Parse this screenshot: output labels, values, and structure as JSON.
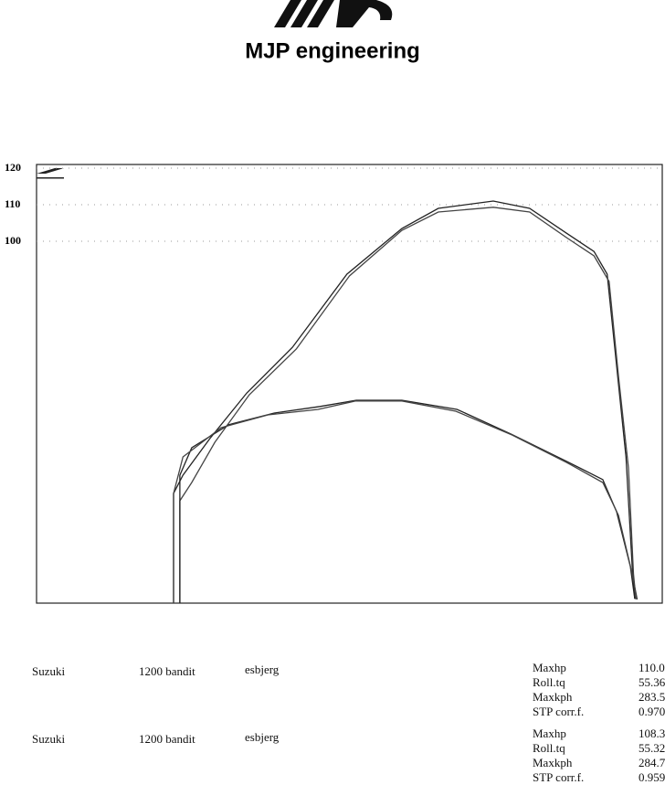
{
  "header": {
    "title": "MJP engineering"
  },
  "chart_data": {
    "type": "line",
    "xlim": [
      0,
      100
    ],
    "ylim": [
      0,
      120
    ],
    "yticks": [
      100,
      110,
      120
    ],
    "grid": true,
    "series": [
      {
        "color": "#222222",
        "x": [
          21.9,
          21.9,
          23.4,
          27.7,
          33.6,
          40.9,
          49.6,
          58.4,
          64.2,
          73.0,
          78.8,
          84.7,
          89.1,
          91.2,
          92.7,
          94.2,
          95.2,
          95.6
        ],
        "values": [
          0,
          30,
          35,
          45,
          57.5,
          70,
          90,
          102.5,
          108,
          110.0,
          108,
          101.2,
          96.2,
          90,
          65,
          40,
          10,
          1.2
        ]
      },
      {
        "color": "#444444",
        "x": [
          22.9,
          22.9,
          24.8,
          28.5,
          34,
          41.5,
          50,
          58.4,
          64.2,
          73,
          78.8,
          84.7,
          89.1,
          91.5,
          93,
          94.6,
          95.4,
          95.8
        ],
        "values": [
          0,
          28,
          33,
          44,
          57,
          69.5,
          89.5,
          102,
          107,
          108.3,
          107,
          100,
          95,
          88,
          62,
          37,
          8,
          1
        ]
      },
      {
        "color": "#222222",
        "x": [
          22.9,
          22.9,
          24.8,
          30.7,
          38.0,
          45.3,
          51.1,
          58.4,
          67.2,
          75.9,
          84.7,
          90.5,
          92.7,
          94.9,
          95.6
        ],
        "values": [
          0,
          35,
          42.5,
          48.8,
          52,
          53.8,
          55.5,
          55.5,
          53,
          46.2,
          38.8,
          33.8,
          25,
          10,
          1.2
        ]
      },
      {
        "color": "#444444",
        "x": [
          21.9,
          21.9,
          23.4,
          29.5,
          37,
          45,
          51,
          58.4,
          67,
          76,
          84.7,
          90.5,
          93,
          95.2,
          96
        ],
        "values": [
          0,
          30,
          40,
          48,
          51.5,
          53,
          55.3,
          55.3,
          52.5,
          46,
          38.5,
          33,
          24,
          8,
          1
        ]
      }
    ]
  },
  "runs": [
    {
      "make": "Suzuki",
      "model": "1200 bandit",
      "place": "esbjerg",
      "stats": [
        [
          "Maxhp",
          "110.0"
        ],
        [
          "Roll.tq",
          "55.36"
        ],
        [
          "Maxkph",
          "283.5"
        ],
        [
          "STP corr.f.",
          "0.970"
        ]
      ]
    },
    {
      "make": "Suzuki",
      "model": "1200 bandit",
      "place": "esbjerg",
      "stats": [
        [
          "Maxhp",
          "108.3"
        ],
        [
          "Roll.tq",
          "55.32"
        ],
        [
          "Maxkph",
          "284.7"
        ],
        [
          "STP corr.f.",
          "0.959"
        ]
      ]
    }
  ]
}
